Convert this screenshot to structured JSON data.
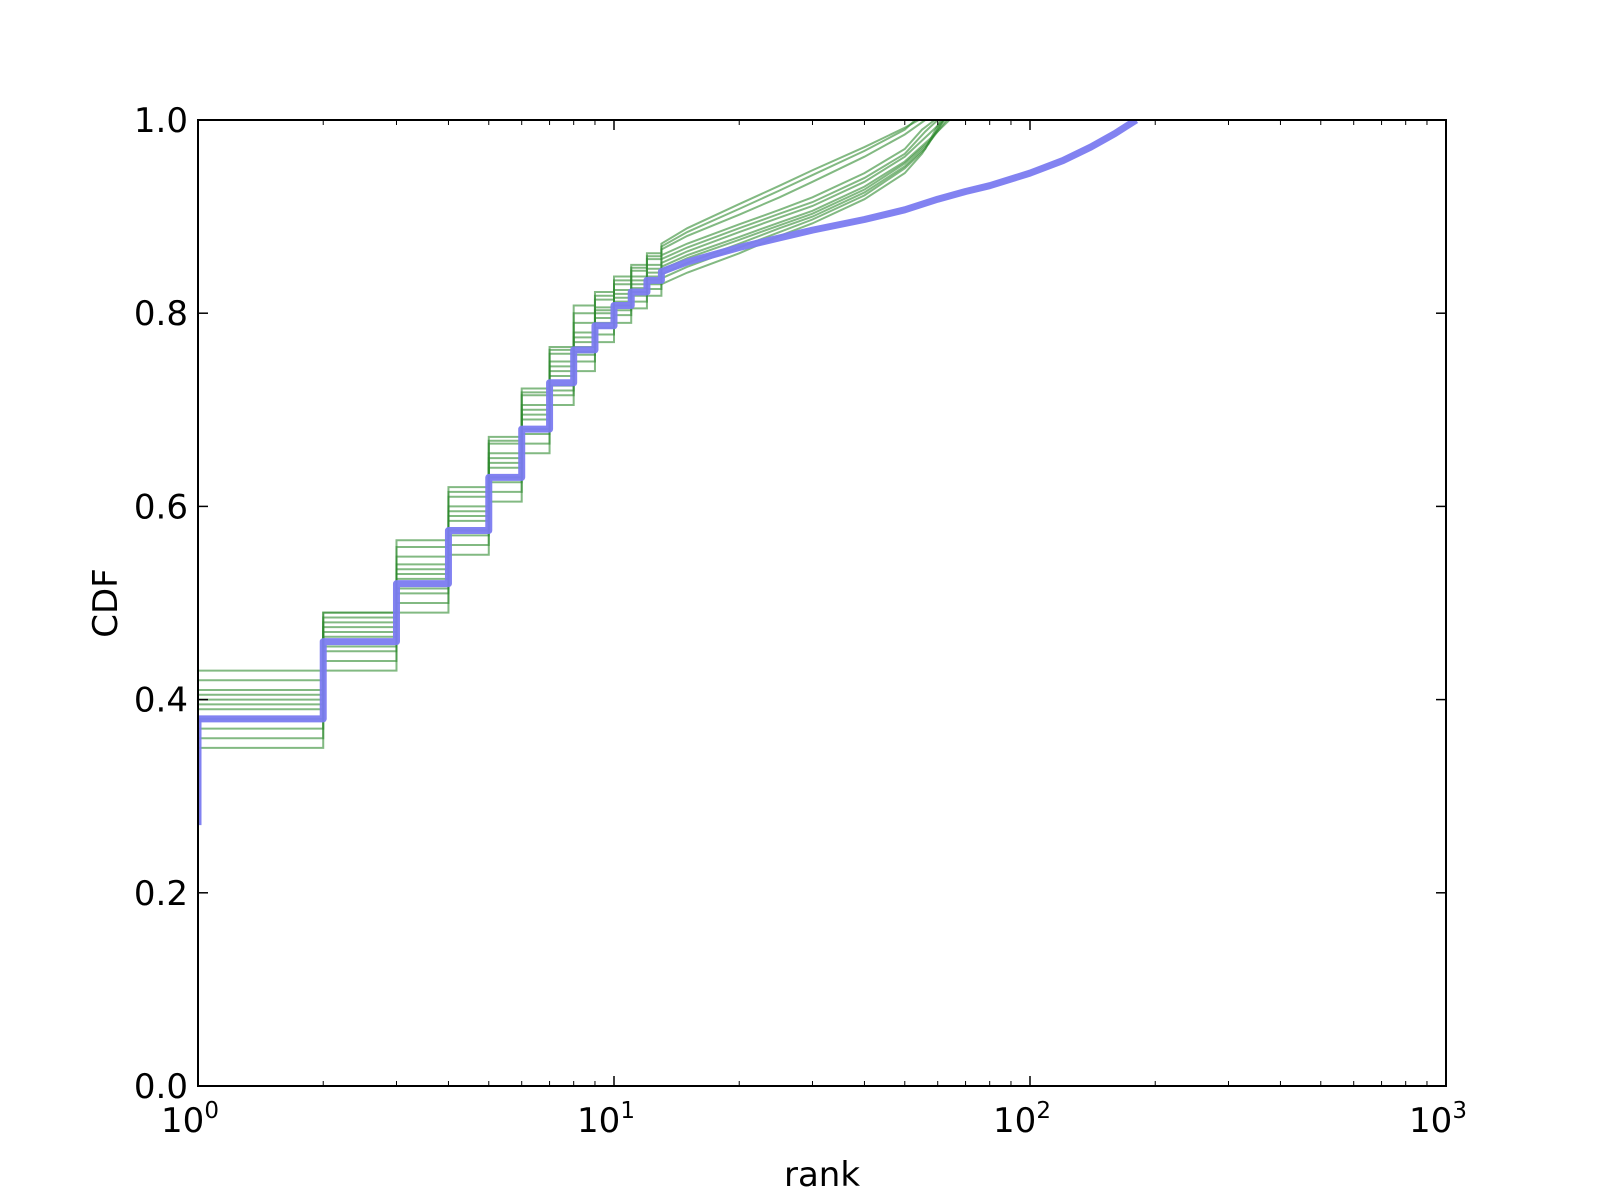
{
  "chart_data": {
    "type": "line",
    "title": "",
    "xlabel": "rank",
    "ylabel": "CDF",
    "x_scale": "log",
    "xlim": [
      1,
      1000
    ],
    "ylim": [
      0.0,
      1.0
    ],
    "grid": false,
    "legend": "none",
    "x_ticks": [
      {
        "value": 1,
        "base": "10",
        "exp": "0"
      },
      {
        "value": 10,
        "base": "10",
        "exp": "1"
      },
      {
        "value": 100,
        "base": "10",
        "exp": "2"
      },
      {
        "value": 1000,
        "base": "10",
        "exp": "3"
      }
    ],
    "y_ticks": [
      {
        "value": 0.0,
        "label": "0.0"
      },
      {
        "value": 0.2,
        "label": "0.2"
      },
      {
        "value": 0.4,
        "label": "0.4"
      },
      {
        "value": 0.6,
        "label": "0.6"
      },
      {
        "value": 0.8,
        "label": "0.8"
      },
      {
        "value": 1.0,
        "label": "1.0"
      }
    ],
    "colors": {
      "observed": "#7b7bf0",
      "samples": "#2e8b2e"
    },
    "series": [
      {
        "role": "observed",
        "step": [
          [
            1,
            0.38
          ],
          [
            2,
            0.46
          ],
          [
            3,
            0.52
          ],
          [
            4,
            0.575
          ],
          [
            5,
            0.63
          ],
          [
            6,
            0.68
          ],
          [
            7,
            0.728
          ],
          [
            8,
            0.762
          ],
          [
            9,
            0.787
          ],
          [
            10,
            0.808
          ],
          [
            11,
            0.822
          ],
          [
            12,
            0.834
          ],
          [
            13,
            0.843
          ]
        ],
        "curve": [
          [
            13,
            0.843
          ],
          [
            15,
            0.853
          ],
          [
            20,
            0.868
          ],
          [
            25,
            0.878
          ],
          [
            30,
            0.886
          ],
          [
            40,
            0.897
          ],
          [
            50,
            0.907
          ],
          [
            60,
            0.918
          ],
          [
            70,
            0.926
          ],
          [
            80,
            0.932
          ],
          [
            100,
            0.945
          ],
          [
            120,
            0.958
          ],
          [
            140,
            0.972
          ],
          [
            160,
            0.986
          ],
          [
            180,
            1.0
          ]
        ]
      },
      {
        "role": "sample",
        "step": [
          [
            1,
            0.35
          ],
          [
            2,
            0.43
          ],
          [
            3,
            0.49
          ],
          [
            4,
            0.55
          ],
          [
            5,
            0.605
          ],
          [
            6,
            0.655
          ],
          [
            7,
            0.705
          ],
          [
            8,
            0.74
          ],
          [
            9,
            0.77
          ],
          [
            10,
            0.79
          ],
          [
            11,
            0.805
          ],
          [
            12,
            0.818
          ],
          [
            13,
            0.83
          ]
        ],
        "curve": [
          [
            13,
            0.83
          ],
          [
            15,
            0.842
          ],
          [
            20,
            0.862
          ],
          [
            25,
            0.88
          ],
          [
            30,
            0.893
          ],
          [
            40,
            0.918
          ],
          [
            50,
            0.945
          ],
          [
            55,
            0.965
          ],
          [
            62,
            1.0
          ]
        ]
      },
      {
        "role": "sample",
        "step": [
          [
            1,
            0.36
          ],
          [
            2,
            0.44
          ],
          [
            3,
            0.5
          ],
          [
            4,
            0.56
          ],
          [
            5,
            0.615
          ],
          [
            6,
            0.665
          ],
          [
            7,
            0.715
          ],
          [
            8,
            0.75
          ],
          [
            9,
            0.778
          ],
          [
            10,
            0.798
          ],
          [
            11,
            0.812
          ],
          [
            12,
            0.825
          ],
          [
            13,
            0.836
          ]
        ],
        "curve": [
          [
            13,
            0.836
          ],
          [
            15,
            0.848
          ],
          [
            20,
            0.868
          ],
          [
            25,
            0.884
          ],
          [
            30,
            0.897
          ],
          [
            40,
            0.922
          ],
          [
            50,
            0.95
          ],
          [
            56,
            0.97
          ],
          [
            61,
            1.0
          ]
        ]
      },
      {
        "role": "sample",
        "step": [
          [
            1,
            0.37
          ],
          [
            2,
            0.45
          ],
          [
            3,
            0.51
          ],
          [
            4,
            0.57
          ],
          [
            5,
            0.625
          ],
          [
            6,
            0.675
          ],
          [
            7,
            0.72
          ],
          [
            8,
            0.757
          ],
          [
            9,
            0.785
          ],
          [
            10,
            0.803
          ],
          [
            11,
            0.818
          ],
          [
            12,
            0.83
          ],
          [
            13,
            0.84
          ]
        ],
        "curve": [
          [
            13,
            0.84
          ],
          [
            15,
            0.852
          ],
          [
            20,
            0.872
          ],
          [
            25,
            0.888
          ],
          [
            30,
            0.9
          ],
          [
            40,
            0.925
          ],
          [
            50,
            0.952
          ],
          [
            57,
            0.975
          ],
          [
            62,
            1.0
          ]
        ]
      },
      {
        "role": "sample",
        "step": [
          [
            1,
            0.38
          ],
          [
            2,
            0.455
          ],
          [
            3,
            0.515
          ],
          [
            4,
            0.575
          ],
          [
            5,
            0.63
          ],
          [
            6,
            0.68
          ],
          [
            7,
            0.725
          ],
          [
            8,
            0.76
          ],
          [
            9,
            0.79
          ],
          [
            10,
            0.808
          ],
          [
            11,
            0.822
          ],
          [
            12,
            0.835
          ],
          [
            13,
            0.845
          ]
        ],
        "curve": [
          [
            13,
            0.845
          ],
          [
            15,
            0.857
          ],
          [
            20,
            0.876
          ],
          [
            25,
            0.891
          ],
          [
            30,
            0.903
          ],
          [
            40,
            0.928
          ],
          [
            50,
            0.955
          ],
          [
            58,
            0.98
          ],
          [
            63,
            1.0
          ]
        ]
      },
      {
        "role": "sample",
        "step": [
          [
            1,
            0.39
          ],
          [
            2,
            0.465
          ],
          [
            3,
            0.525
          ],
          [
            4,
            0.585
          ],
          [
            5,
            0.64
          ],
          [
            6,
            0.69
          ],
          [
            7,
            0.735
          ],
          [
            8,
            0.765
          ],
          [
            9,
            0.795
          ],
          [
            10,
            0.812
          ],
          [
            11,
            0.826
          ],
          [
            12,
            0.838
          ],
          [
            13,
            0.848
          ]
        ],
        "curve": [
          [
            13,
            0.848
          ],
          [
            15,
            0.86
          ],
          [
            20,
            0.879
          ],
          [
            25,
            0.894
          ],
          [
            30,
            0.906
          ],
          [
            40,
            0.931
          ],
          [
            50,
            0.957
          ],
          [
            58,
            0.982
          ],
          [
            64,
            1.0
          ]
        ]
      },
      {
        "role": "sample",
        "step": [
          [
            1,
            0.395
          ],
          [
            2,
            0.47
          ],
          [
            3,
            0.53
          ],
          [
            4,
            0.59
          ],
          [
            5,
            0.645
          ],
          [
            6,
            0.695
          ],
          [
            7,
            0.74
          ],
          [
            8,
            0.77
          ],
          [
            9,
            0.8
          ],
          [
            10,
            0.816
          ],
          [
            11,
            0.83
          ],
          [
            12,
            0.842
          ],
          [
            13,
            0.852
          ]
        ],
        "curve": [
          [
            13,
            0.852
          ],
          [
            15,
            0.864
          ],
          [
            20,
            0.884
          ],
          [
            25,
            0.899
          ],
          [
            30,
            0.911
          ],
          [
            40,
            0.936
          ],
          [
            50,
            0.962
          ],
          [
            57,
            0.985
          ],
          [
            62,
            1.0
          ]
        ]
      },
      {
        "role": "sample",
        "step": [
          [
            1,
            0.4
          ],
          [
            2,
            0.475
          ],
          [
            3,
            0.535
          ],
          [
            4,
            0.595
          ],
          [
            5,
            0.65
          ],
          [
            6,
            0.7
          ],
          [
            7,
            0.745
          ],
          [
            8,
            0.775
          ],
          [
            9,
            0.803
          ],
          [
            10,
            0.82
          ],
          [
            11,
            0.834
          ],
          [
            12,
            0.846
          ],
          [
            13,
            0.856
          ]
        ],
        "curve": [
          [
            13,
            0.856
          ],
          [
            15,
            0.868
          ],
          [
            20,
            0.888
          ],
          [
            25,
            0.903
          ],
          [
            30,
            0.915
          ],
          [
            40,
            0.94
          ],
          [
            50,
            0.965
          ],
          [
            56,
            0.988
          ],
          [
            60,
            1.0
          ]
        ]
      },
      {
        "role": "sample",
        "step": [
          [
            1,
            0.405
          ],
          [
            2,
            0.48
          ],
          [
            3,
            0.54
          ],
          [
            4,
            0.6
          ],
          [
            5,
            0.655
          ],
          [
            6,
            0.705
          ],
          [
            7,
            0.75
          ],
          [
            8,
            0.78
          ],
          [
            9,
            0.806
          ],
          [
            10,
            0.824
          ],
          [
            11,
            0.838
          ],
          [
            12,
            0.85
          ],
          [
            13,
            0.86
          ]
        ],
        "curve": [
          [
            13,
            0.86
          ],
          [
            15,
            0.872
          ],
          [
            20,
            0.892
          ],
          [
            25,
            0.907
          ],
          [
            30,
            0.92
          ],
          [
            40,
            0.945
          ],
          [
            50,
            0.97
          ],
          [
            55,
            0.99
          ],
          [
            59,
            1.0
          ]
        ]
      },
      {
        "role": "sample",
        "step": [
          [
            1,
            0.41
          ],
          [
            2,
            0.485
          ],
          [
            3,
            0.548
          ],
          [
            4,
            0.61
          ],
          [
            5,
            0.665
          ],
          [
            6,
            0.715
          ],
          [
            7,
            0.758
          ],
          [
            8,
            0.79
          ],
          [
            9,
            0.814
          ],
          [
            10,
            0.83
          ],
          [
            11,
            0.844
          ],
          [
            12,
            0.856
          ],
          [
            13,
            0.866
          ]
        ],
        "curve": [
          [
            13,
            0.866
          ],
          [
            15,
            0.88
          ],
          [
            20,
            0.902
          ],
          [
            25,
            0.92
          ],
          [
            30,
            0.936
          ],
          [
            40,
            0.962
          ],
          [
            50,
            0.985
          ],
          [
            56,
            1.0
          ]
        ]
      },
      {
        "role": "sample",
        "step": [
          [
            1,
            0.42
          ],
          [
            2,
            0.49
          ],
          [
            3,
            0.565
          ],
          [
            4,
            0.62
          ],
          [
            5,
            0.672
          ],
          [
            6,
            0.722
          ],
          [
            7,
            0.765
          ],
          [
            8,
            0.808
          ],
          [
            9,
            0.822
          ],
          [
            10,
            0.838
          ],
          [
            11,
            0.85
          ],
          [
            12,
            0.862
          ],
          [
            13,
            0.872
          ]
        ],
        "curve": [
          [
            13,
            0.872
          ],
          [
            15,
            0.888
          ],
          [
            20,
            0.913
          ],
          [
            25,
            0.932
          ],
          [
            30,
            0.948
          ],
          [
            40,
            0.972
          ],
          [
            50,
            0.992
          ],
          [
            54,
            1.0
          ]
        ]
      },
      {
        "role": "sample",
        "step": [
          [
            1,
            0.43
          ],
          [
            2,
            0.49
          ],
          [
            3,
            0.558
          ],
          [
            4,
            0.615
          ],
          [
            5,
            0.668
          ],
          [
            6,
            0.718
          ],
          [
            7,
            0.762
          ],
          [
            8,
            0.8
          ],
          [
            9,
            0.818
          ],
          [
            10,
            0.834
          ],
          [
            11,
            0.847
          ],
          [
            12,
            0.859
          ],
          [
            13,
            0.869
          ]
        ],
        "curve": [
          [
            13,
            0.869
          ],
          [
            15,
            0.884
          ],
          [
            20,
            0.908
          ],
          [
            25,
            0.927
          ],
          [
            30,
            0.943
          ],
          [
            40,
            0.968
          ],
          [
            50,
            0.99
          ],
          [
            53,
            1.0
          ]
        ]
      }
    ]
  }
}
